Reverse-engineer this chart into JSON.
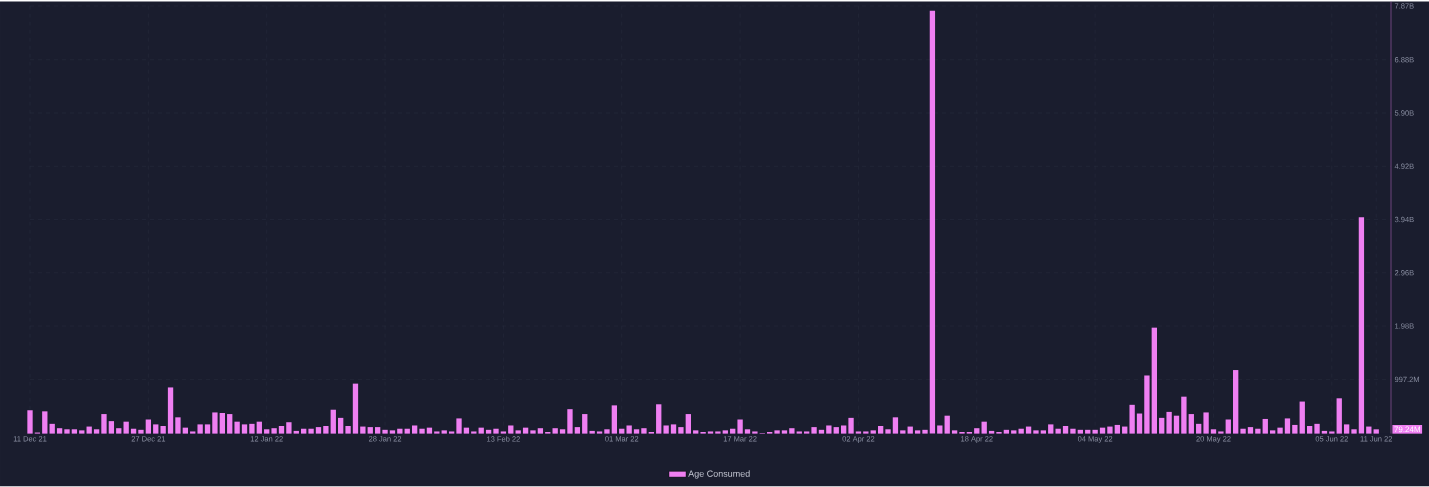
{
  "chart_data": {
    "type": "bar",
    "x": [
      "2021-12-11",
      "2021-12-12",
      "2021-12-13",
      "2021-12-14",
      "2021-12-15",
      "2021-12-16",
      "2021-12-17",
      "2021-12-18",
      "2021-12-19",
      "2021-12-20",
      "2021-12-21",
      "2021-12-22",
      "2021-12-23",
      "2021-12-24",
      "2021-12-25",
      "2021-12-26",
      "2021-12-27",
      "2021-12-28",
      "2021-12-29",
      "2021-12-30",
      "2021-12-31",
      "2022-01-01",
      "2022-01-02",
      "2022-01-03",
      "2022-01-04",
      "2022-01-05",
      "2022-01-06",
      "2022-01-07",
      "2022-01-08",
      "2022-01-09",
      "2022-01-10",
      "2022-01-11",
      "2022-01-12",
      "2022-01-13",
      "2022-01-14",
      "2022-01-15",
      "2022-01-16",
      "2022-01-17",
      "2022-01-18",
      "2022-01-19",
      "2022-01-20",
      "2022-01-21",
      "2022-01-22",
      "2022-01-23",
      "2022-01-24",
      "2022-01-25",
      "2022-01-26",
      "2022-01-27",
      "2022-01-28",
      "2022-01-29",
      "2022-01-30",
      "2022-01-31",
      "2022-02-01",
      "2022-02-02",
      "2022-02-03",
      "2022-02-04",
      "2022-02-05",
      "2022-02-06",
      "2022-02-07",
      "2022-02-08",
      "2022-02-09",
      "2022-02-10",
      "2022-02-11",
      "2022-02-12",
      "2022-02-13",
      "2022-02-14",
      "2022-02-15",
      "2022-02-16",
      "2022-02-17",
      "2022-02-18",
      "2022-02-19",
      "2022-02-20",
      "2022-02-21",
      "2022-02-22",
      "2022-02-23",
      "2022-02-24",
      "2022-02-25",
      "2022-02-26",
      "2022-02-27",
      "2022-02-28",
      "2022-03-01",
      "2022-03-02",
      "2022-03-03",
      "2022-03-04",
      "2022-03-05",
      "2022-03-06",
      "2022-03-07",
      "2022-03-08",
      "2022-03-09",
      "2022-03-10",
      "2022-03-11",
      "2022-03-12",
      "2022-03-13",
      "2022-03-14",
      "2022-03-15",
      "2022-03-16",
      "2022-03-17",
      "2022-03-18",
      "2022-03-19",
      "2022-03-20",
      "2022-03-21",
      "2022-03-22",
      "2022-03-23",
      "2022-03-24",
      "2022-03-25",
      "2022-03-26",
      "2022-03-27",
      "2022-03-28",
      "2022-03-29",
      "2022-03-30",
      "2022-03-31",
      "2022-04-01",
      "2022-04-02",
      "2022-04-03",
      "2022-04-04",
      "2022-04-05",
      "2022-04-06",
      "2022-04-07",
      "2022-04-08",
      "2022-04-09",
      "2022-04-10",
      "2022-04-11",
      "2022-04-12",
      "2022-04-13",
      "2022-04-14",
      "2022-04-15",
      "2022-04-16",
      "2022-04-17",
      "2022-04-18",
      "2022-04-19",
      "2022-04-20",
      "2022-04-21",
      "2022-04-22",
      "2022-04-23",
      "2022-04-24",
      "2022-04-25",
      "2022-04-26",
      "2022-04-27",
      "2022-04-28",
      "2022-04-29",
      "2022-04-30",
      "2022-05-01",
      "2022-05-02",
      "2022-05-03",
      "2022-05-04",
      "2022-05-05",
      "2022-05-06",
      "2022-05-07",
      "2022-05-08",
      "2022-05-09",
      "2022-05-10",
      "2022-05-11",
      "2022-05-12",
      "2022-05-13",
      "2022-05-14",
      "2022-05-15",
      "2022-05-16",
      "2022-05-17",
      "2022-05-18",
      "2022-05-19",
      "2022-05-20",
      "2022-05-21",
      "2022-05-22",
      "2022-05-23",
      "2022-05-24",
      "2022-05-25",
      "2022-05-26",
      "2022-05-27",
      "2022-05-28",
      "2022-05-29",
      "2022-05-30",
      "2022-05-31",
      "2022-06-01",
      "2022-06-02",
      "2022-06-03",
      "2022-06-04",
      "2022-06-05",
      "2022-06-06",
      "2022-06-07",
      "2022-06-08",
      "2022-06-09",
      "2022-06-10",
      "2022-06-11"
    ],
    "series": [
      {
        "name": "Age Consumed",
        "color": "#ef7ff2",
        "values": [
          430000000.0,
          20000000.0,
          410000000.0,
          180000000.0,
          100000000.0,
          80000000.0,
          80000000.0,
          60000000.0,
          130000000.0,
          80000000.0,
          360000000.0,
          230000000.0,
          100000000.0,
          220000000.0,
          90000000.0,
          70000000.0,
          260000000.0,
          170000000.0,
          140000000.0,
          850000000.0,
          300000000.0,
          110000000.0,
          40000000.0,
          170000000.0,
          170000000.0,
          390000000.0,
          380000000.0,
          360000000.0,
          220000000.0,
          170000000.0,
          180000000.0,
          220000000.0,
          80000000.0,
          100000000.0,
          140000000.0,
          210000000.0,
          50000000.0,
          90000000.0,
          90000000.0,
          120000000.0,
          140000000.0,
          440000000.0,
          290000000.0,
          140000000.0,
          920000000.0,
          130000000.0,
          120000000.0,
          120000000.0,
          70000000.0,
          60000000.0,
          90000000.0,
          90000000.0,
          150000000.0,
          90000000.0,
          110000000.0,
          40000000.0,
          60000000.0,
          40000000.0,
          280000000.0,
          110000000.0,
          40000000.0,
          110000000.0,
          70000000.0,
          90000000.0,
          40000000.0,
          150000000.0,
          60000000.0,
          110000000.0,
          60000000.0,
          100000000.0,
          30000000.0,
          100000000.0,
          80000000.0,
          450000000.0,
          120000000.0,
          360000000.0,
          50000000.0,
          40000000.0,
          80000000.0,
          520000000.0,
          90000000.0,
          150000000.0,
          80000000.0,
          100000000.0,
          30000000.0,
          540000000.0,
          150000000.0,
          170000000.0,
          120000000.0,
          360000000.0,
          60000000.0,
          30000000.0,
          40000000.0,
          40000000.0,
          60000000.0,
          90000000.0,
          260000000.0,
          80000000.0,
          40000000.0,
          10000000.0,
          30000000.0,
          60000000.0,
          60000000.0,
          100000000.0,
          40000000.0,
          40000000.0,
          120000000.0,
          70000000.0,
          150000000.0,
          120000000.0,
          150000000.0,
          290000000.0,
          40000000.0,
          40000000.0,
          60000000.0,
          140000000.0,
          80000000.0,
          300000000.0,
          60000000.0,
          130000000.0,
          60000000.0,
          70000000.0,
          7780000000.0,
          150000000.0,
          330000000.0,
          60000000.0,
          30000000.0,
          30000000.0,
          100000000.0,
          220000000.0,
          50000000.0,
          30000000.0,
          70000000.0,
          60000000.0,
          90000000.0,
          130000000.0,
          60000000.0,
          60000000.0,
          170000000.0,
          90000000.0,
          140000000.0,
          90000000.0,
          70000000.0,
          70000000.0,
          70000000.0,
          110000000.0,
          130000000.0,
          160000000.0,
          130000000.0,
          530000000.0,
          370000000.0,
          1070000000.0,
          1950000000.0,
          290000000.0,
          400000000.0,
          330000000.0,
          680000000.0,
          360000000.0,
          180000000.0,
          390000000.0,
          80000000.0,
          40000000.0,
          260000000.0,
          1170000000.0,
          90000000.0,
          120000000.0,
          90000000.0,
          270000000.0,
          60000000.0,
          110000000.0,
          280000000.0,
          160000000.0,
          590000000.0,
          140000000.0,
          180000000.0,
          50000000.0,
          40000000.0,
          650000000.0,
          170000000.0,
          80000000.0,
          3980000000.0,
          130000000.0,
          79240000.0
        ]
      }
    ],
    "xlim": [
      "2021-12-11",
      "2022-06-13"
    ],
    "xticks": [
      {
        "value": "2021-12-11",
        "label": "11 Dec 21"
      },
      {
        "value": "2021-12-27",
        "label": "27 Dec 21"
      },
      {
        "value": "2022-01-12",
        "label": "12 Jan 22"
      },
      {
        "value": "2022-01-28",
        "label": "28 Jan 22"
      },
      {
        "value": "2022-02-13",
        "label": "13 Feb 22"
      },
      {
        "value": "2022-03-01",
        "label": "01 Mar 22"
      },
      {
        "value": "2022-03-17",
        "label": "17 Mar 22"
      },
      {
        "value": "2022-04-02",
        "label": "02 Apr 22"
      },
      {
        "value": "2022-04-18",
        "label": "18 Apr 22"
      },
      {
        "value": "2022-05-04",
        "label": "04 May 22"
      },
      {
        "value": "2022-05-20",
        "label": "20 May 22"
      },
      {
        "value": "2022-06-05",
        "label": "05 Jun 22"
      },
      {
        "value": "2022-06-11",
        "label": "11 Jun 22"
      }
    ],
    "ylim": [
      0,
      7950000000.0
    ],
    "yticks": [
      {
        "value": 997200000.0,
        "label": "997.2M"
      },
      {
        "value": 1980000000.0,
        "label": "1.98B"
      },
      {
        "value": 2960000000.0,
        "label": "2.96B"
      },
      {
        "value": 3940000000.0,
        "label": "3.94B"
      },
      {
        "value": 4920000000.0,
        "label": "4.92B"
      },
      {
        "value": 5900000000.0,
        "label": "5.90B"
      },
      {
        "value": 6880000000.0,
        "label": "6.88B"
      },
      {
        "value": 7870000000.0,
        "label": "7.87B"
      }
    ],
    "annotations": [
      {
        "text": "79.24M",
        "x": "2022-06-11",
        "y": 79240000.0
      }
    ],
    "grid": true,
    "legend": "bottom"
  }
}
